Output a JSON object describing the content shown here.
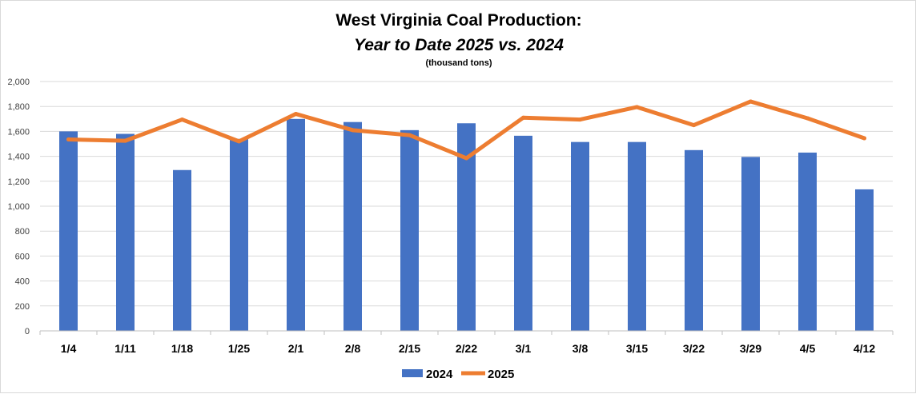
{
  "chart_data": {
    "type": "bar",
    "title": "West Virginia Coal Production:",
    "subtitle": "Year to Date 2025 vs. 2024",
    "unit_note": "(thousand tons)",
    "categories": [
      "1/4",
      "1/11",
      "1/18",
      "1/25",
      "2/1",
      "2/8",
      "2/15",
      "2/22",
      "3/1",
      "3/8",
      "3/15",
      "3/22",
      "3/29",
      "4/5",
      "4/12"
    ],
    "series": [
      {
        "name": "2024",
        "type": "bar",
        "color": "#4472c4",
        "values": [
          1600,
          1580,
          1290,
          1540,
          1700,
          1675,
          1610,
          1665,
          1565,
          1515,
          1515,
          1450,
          1395,
          1430,
          1135
        ]
      },
      {
        "name": "2025",
        "type": "line",
        "color": "#ed7d31",
        "values": [
          1535,
          1525,
          1695,
          1520,
          1740,
          1610,
          1570,
          1385,
          1710,
          1695,
          1795,
          1650,
          1840,
          1705,
          1545
        ]
      }
    ],
    "ylim": [
      0,
      2000
    ],
    "yticks": [
      "0",
      "200",
      "400",
      "600",
      "800",
      "1,000",
      "1,200",
      "1,400",
      "1,600",
      "1,800",
      "2,000"
    ],
    "ytick_values": [
      0,
      200,
      400,
      600,
      800,
      1000,
      1200,
      1400,
      1600,
      1800,
      2000
    ],
    "grid": true,
    "legend_position": "bottom"
  }
}
